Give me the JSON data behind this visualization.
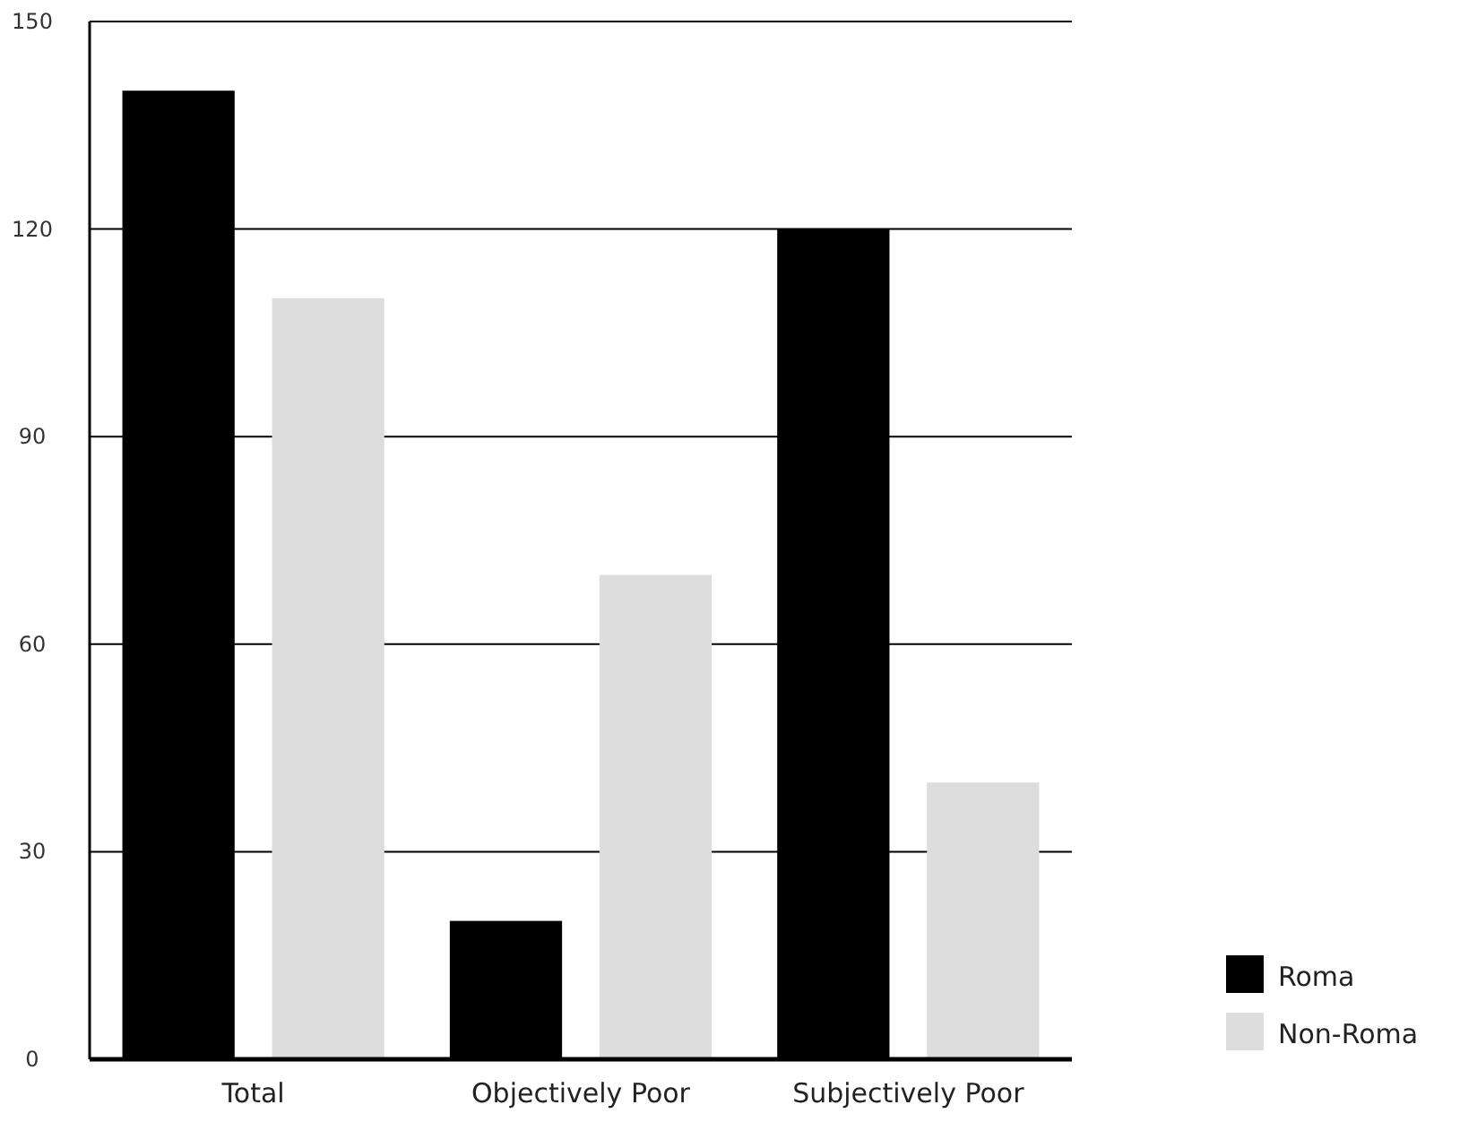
{
  "chart_data": {
    "type": "bar",
    "categories": [
      "Total",
      "Objectively Poor",
      "Subjectively Poor"
    ],
    "series": [
      {
        "name": "Roma",
        "color": "#000000",
        "values": [
          140,
          20,
          120
        ]
      },
      {
        "name": "Non-Roma",
        "color": "#dddddd",
        "values": [
          110,
          70,
          40
        ]
      }
    ],
    "ylim": [
      0,
      150
    ],
    "yticks": [
      {
        "value": 0,
        "label": "0"
      },
      30,
      60,
      90,
      120,
      150
    ],
    "grid": "y",
    "legend": "bottom right"
  }
}
